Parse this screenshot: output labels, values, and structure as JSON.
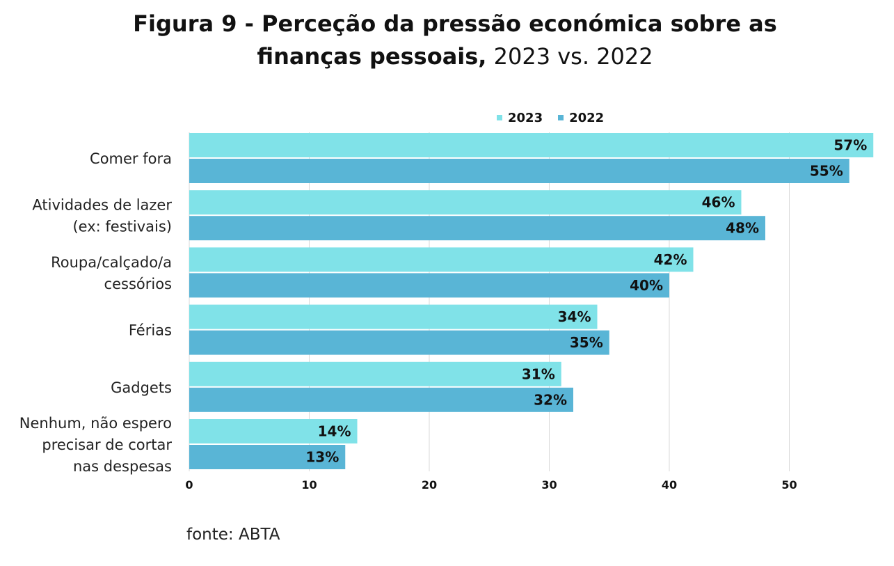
{
  "title": {
    "line1": "Figura 9 - Perceção da pressão económica sobre as",
    "line2_bold": "finanças pessoais,",
    "line2_rest": " 2023 vs. 2022"
  },
  "source": "fonte: ABTA",
  "colors": {
    "2023": "#80e2e8",
    "2022": "#59b5d6",
    "grid": "#d9d9d9"
  },
  "chart_data": {
    "type": "bar",
    "orientation": "horizontal",
    "categories": [
      [
        "Comer fora"
      ],
      [
        "Atividades de lazer",
        "(ex: festivais)"
      ],
      [
        "Roupa/calçado/a",
        "cessórios"
      ],
      [
        "Férias"
      ],
      [
        "Gadgets "
      ],
      [
        "Nenhum, não espero",
        "precisar de cortar",
        "nas despesas"
      ]
    ],
    "series": [
      {
        "name": "2023",
        "values": [
          57,
          46,
          42,
          34,
          31,
          14
        ],
        "labels": [
          "57%",
          "46%",
          "42%",
          "34%",
          "31%",
          "14%"
        ]
      },
      {
        "name": "2022",
        "values": [
          55,
          48,
          40,
          35,
          32,
          13
        ],
        "labels": [
          "55%",
          "48%",
          "40%",
          "35%",
          "32%",
          "13%"
        ]
      }
    ],
    "xlim": [
      0,
      57
    ],
    "xticks": [
      0,
      10,
      20,
      30,
      40,
      50
    ],
    "xtick_labels": [
      "0",
      "10",
      "20",
      "30",
      "40",
      "50"
    ],
    "grid": true,
    "legend_position": "top"
  }
}
